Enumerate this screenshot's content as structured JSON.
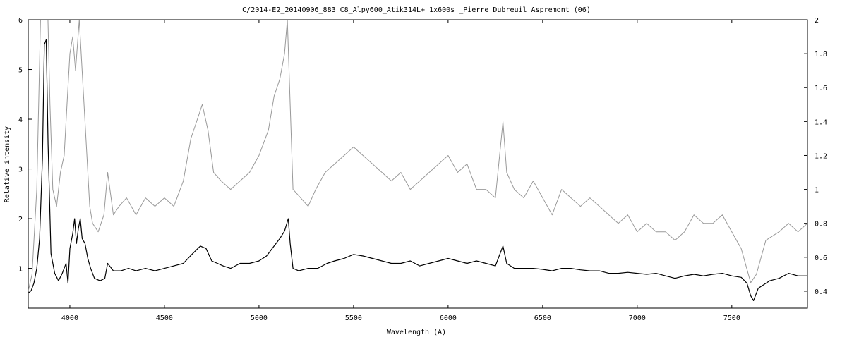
{
  "chart_data": {
    "type": "line",
    "title": "C/2014-E2_20140906_883   C8_Alpy600_Atik314L+  1x600s  _Pierre Dubreuil Aspremont (06)",
    "xlabel": "Wavelength (A)",
    "ylabel": "Relative intensity",
    "xlim": [
      3780,
      7900
    ],
    "ylim_left": [
      0.2,
      6
    ],
    "ylim_right": [
      0.3,
      2
    ],
    "x_ticks": [
      "4000",
      "4500",
      "5000",
      "5500",
      "6000",
      "6500",
      "7000",
      "7500"
    ],
    "y_ticks_left": [
      "1",
      "2",
      "3",
      "4",
      "5",
      "6"
    ],
    "y_ticks_right": [
      "0.4",
      "0.6",
      "0.8",
      "1",
      "1.2",
      "1.4",
      "1.6",
      "1.8",
      "2"
    ],
    "grid": false,
    "series": [
      {
        "axis": "left",
        "color": "#000000",
        "points": [
          [
            3780,
            0.5
          ],
          [
            3795,
            0.55
          ],
          [
            3810,
            0.7
          ],
          [
            3825,
            1.0
          ],
          [
            3840,
            1.6
          ],
          [
            3855,
            3.2
          ],
          [
            3865,
            5.5
          ],
          [
            3875,
            5.6
          ],
          [
            3885,
            3.5
          ],
          [
            3900,
            1.3
          ],
          [
            3920,
            0.9
          ],
          [
            3940,
            0.75
          ],
          [
            3960,
            0.9
          ],
          [
            3980,
            1.1
          ],
          [
            3990,
            0.7
          ],
          [
            4000,
            1.4
          ],
          [
            4015,
            1.7
          ],
          [
            4025,
            2.0
          ],
          [
            4035,
            1.5
          ],
          [
            4045,
            1.8
          ],
          [
            4055,
            2.0
          ],
          [
            4065,
            1.6
          ],
          [
            4080,
            1.5
          ],
          [
            4095,
            1.2
          ],
          [
            4110,
            1.0
          ],
          [
            4130,
            0.8
          ],
          [
            4160,
            0.75
          ],
          [
            4185,
            0.8
          ],
          [
            4200,
            1.1
          ],
          [
            4230,
            0.95
          ],
          [
            4270,
            0.95
          ],
          [
            4310,
            1.0
          ],
          [
            4350,
            0.95
          ],
          [
            4400,
            1.0
          ],
          [
            4450,
            0.95
          ],
          [
            4500,
            1.0
          ],
          [
            4550,
            1.05
          ],
          [
            4600,
            1.1
          ],
          [
            4650,
            1.3
          ],
          [
            4690,
            1.45
          ],
          [
            4720,
            1.4
          ],
          [
            4750,
            1.15
          ],
          [
            4780,
            1.1
          ],
          [
            4810,
            1.05
          ],
          [
            4850,
            1.0
          ],
          [
            4900,
            1.1
          ],
          [
            4950,
            1.1
          ],
          [
            5000,
            1.15
          ],
          [
            5040,
            1.25
          ],
          [
            5080,
            1.45
          ],
          [
            5110,
            1.6
          ],
          [
            5135,
            1.75
          ],
          [
            5155,
            2.0
          ],
          [
            5165,
            1.5
          ],
          [
            5180,
            1.0
          ],
          [
            5210,
            0.95
          ],
          [
            5260,
            1.0
          ],
          [
            5310,
            1.0
          ],
          [
            5360,
            1.1
          ],
          [
            5400,
            1.15
          ],
          [
            5450,
            1.2
          ],
          [
            5500,
            1.28
          ],
          [
            5550,
            1.25
          ],
          [
            5600,
            1.2
          ],
          [
            5650,
            1.15
          ],
          [
            5700,
            1.1
          ],
          [
            5750,
            1.1
          ],
          [
            5800,
            1.15
          ],
          [
            5850,
            1.05
          ],
          [
            5900,
            1.1
          ],
          [
            5950,
            1.15
          ],
          [
            6000,
            1.2
          ],
          [
            6050,
            1.15
          ],
          [
            6100,
            1.1
          ],
          [
            6150,
            1.15
          ],
          [
            6200,
            1.1
          ],
          [
            6250,
            1.05
          ],
          [
            6290,
            1.45
          ],
          [
            6310,
            1.1
          ],
          [
            6350,
            1.0
          ],
          [
            6400,
            1.0
          ],
          [
            6450,
            1.0
          ],
          [
            6500,
            0.98
          ],
          [
            6550,
            0.95
          ],
          [
            6600,
            1.0
          ],
          [
            6650,
            1.0
          ],
          [
            6700,
            0.97
          ],
          [
            6750,
            0.95
          ],
          [
            6800,
            0.95
          ],
          [
            6850,
            0.9
          ],
          [
            6900,
            0.9
          ],
          [
            6950,
            0.92
          ],
          [
            7000,
            0.9
          ],
          [
            7050,
            0.88
          ],
          [
            7100,
            0.9
          ],
          [
            7150,
            0.85
          ],
          [
            7200,
            0.8
          ],
          [
            7250,
            0.85
          ],
          [
            7300,
            0.88
          ],
          [
            7350,
            0.85
          ],
          [
            7400,
            0.88
          ],
          [
            7450,
            0.9
          ],
          [
            7500,
            0.85
          ],
          [
            7550,
            0.82
          ],
          [
            7580,
            0.7
          ],
          [
            7600,
            0.45
          ],
          [
            7615,
            0.35
          ],
          [
            7640,
            0.6
          ],
          [
            7700,
            0.75
          ],
          [
            7750,
            0.8
          ],
          [
            7800,
            0.9
          ],
          [
            7850,
            0.85
          ],
          [
            7900,
            0.85
          ]
        ]
      },
      {
        "axis": "right",
        "color": "#999999",
        "points": [
          [
            3780,
            0.4
          ],
          [
            3800,
            0.5
          ],
          [
            3825,
            1.0
          ],
          [
            3845,
            2.0
          ],
          [
            3860,
            2.1
          ],
          [
            3880,
            2.2
          ],
          [
            3895,
            1.5
          ],
          [
            3910,
            1.0
          ],
          [
            3930,
            0.9
          ],
          [
            3950,
            1.1
          ],
          [
            3970,
            1.2
          ],
          [
            3985,
            1.5
          ],
          [
            4000,
            1.8
          ],
          [
            4015,
            1.9
          ],
          [
            4030,
            1.7
          ],
          [
            4050,
            2.0
          ],
          [
            4070,
            1.6
          ],
          [
            4090,
            1.2
          ],
          [
            4105,
            0.9
          ],
          [
            4120,
            0.8
          ],
          [
            4150,
            0.75
          ],
          [
            4180,
            0.85
          ],
          [
            4200,
            1.1
          ],
          [
            4230,
            0.85
          ],
          [
            4260,
            0.9
          ],
          [
            4300,
            0.95
          ],
          [
            4350,
            0.85
          ],
          [
            4400,
            0.95
          ],
          [
            4450,
            0.9
          ],
          [
            4500,
            0.95
          ],
          [
            4550,
            0.9
          ],
          [
            4600,
            1.05
          ],
          [
            4640,
            1.3
          ],
          [
            4670,
            1.4
          ],
          [
            4700,
            1.5
          ],
          [
            4730,
            1.35
          ],
          [
            4760,
            1.1
          ],
          [
            4800,
            1.05
          ],
          [
            4850,
            1.0
          ],
          [
            4900,
            1.05
          ],
          [
            4950,
            1.1
          ],
          [
            5000,
            1.2
          ],
          [
            5050,
            1.35
          ],
          [
            5080,
            1.55
          ],
          [
            5110,
            1.65
          ],
          [
            5135,
            1.8
          ],
          [
            5150,
            2.0
          ],
          [
            5165,
            1.5
          ],
          [
            5180,
            1.0
          ],
          [
            5220,
            0.95
          ],
          [
            5260,
            0.9
          ],
          [
            5300,
            1.0
          ],
          [
            5350,
            1.1
          ],
          [
            5400,
            1.15
          ],
          [
            5450,
            1.2
          ],
          [
            5500,
            1.25
          ],
          [
            5550,
            1.2
          ],
          [
            5600,
            1.15
          ],
          [
            5650,
            1.1
          ],
          [
            5700,
            1.05
          ],
          [
            5750,
            1.1
          ],
          [
            5800,
            1.0
          ],
          [
            5850,
            1.05
          ],
          [
            5900,
            1.1
          ],
          [
            5950,
            1.15
          ],
          [
            6000,
            1.2
          ],
          [
            6050,
            1.1
          ],
          [
            6100,
            1.15
          ],
          [
            6150,
            1.0
          ],
          [
            6200,
            1.0
          ],
          [
            6250,
            0.95
          ],
          [
            6290,
            1.4
          ],
          [
            6310,
            1.1
          ],
          [
            6350,
            1.0
          ],
          [
            6400,
            0.95
          ],
          [
            6450,
            1.05
          ],
          [
            6500,
            0.95
          ],
          [
            6550,
            0.85
          ],
          [
            6600,
            1.0
          ],
          [
            6650,
            0.95
          ],
          [
            6700,
            0.9
          ],
          [
            6750,
            0.95
          ],
          [
            6800,
            0.9
          ],
          [
            6850,
            0.85
          ],
          [
            6900,
            0.8
          ],
          [
            6950,
            0.85
          ],
          [
            7000,
            0.75
          ],
          [
            7050,
            0.8
          ],
          [
            7100,
            0.75
          ],
          [
            7150,
            0.75
          ],
          [
            7200,
            0.7
          ],
          [
            7250,
            0.75
          ],
          [
            7300,
            0.85
          ],
          [
            7350,
            0.8
          ],
          [
            7400,
            0.8
          ],
          [
            7450,
            0.85
          ],
          [
            7500,
            0.75
          ],
          [
            7550,
            0.65
          ],
          [
            7600,
            0.45
          ],
          [
            7630,
            0.5
          ],
          [
            7680,
            0.7
          ],
          [
            7750,
            0.75
          ],
          [
            7800,
            0.8
          ],
          [
            7850,
            0.75
          ],
          [
            7900,
            0.8
          ]
        ]
      }
    ]
  }
}
